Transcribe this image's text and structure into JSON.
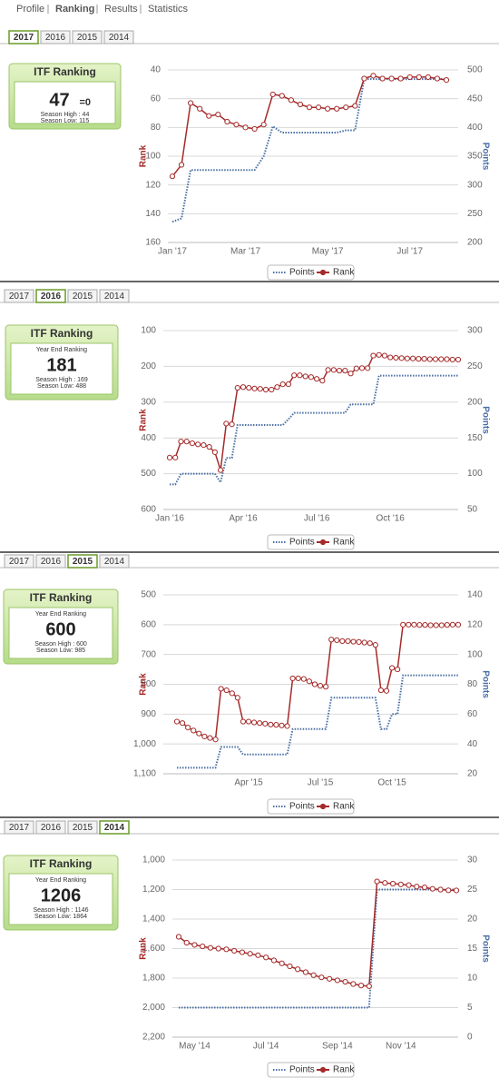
{
  "nav": {
    "items": [
      "Profile",
      "Ranking",
      "Results",
      "Statistics"
    ],
    "active": 1
  },
  "panels": [
    {
      "tabs": [
        "2017",
        "2016",
        "2015",
        "2014"
      ],
      "active_tab": 0,
      "card": {
        "title": "ITF Ranking",
        "rank": 47,
        "change": "=0",
        "high": "Season High : 44",
        "low": "Season Low: 115"
      }
    },
    {
      "tabs": [
        "2017",
        "2016",
        "2015",
        "2014"
      ],
      "active_tab": 1,
      "card": {
        "title": "ITF Ranking",
        "subtitle": "Year End Ranking",
        "rank": 181,
        "high": "Season High : 169",
        "low": "Season Low: 488"
      }
    },
    {
      "tabs": [
        "2017",
        "2016",
        "2015",
        "2014"
      ],
      "active_tab": 2,
      "card": {
        "title": "ITF Ranking",
        "subtitle": "Year End Ranking",
        "rank": 600,
        "high": "Season High : 600",
        "low": "Season Low: 985"
      }
    },
    {
      "tabs": [
        "2017",
        "2016",
        "2015",
        "2014"
      ],
      "active_tab": 3,
      "card": {
        "title": "ITF Ranking",
        "subtitle": "Year End Ranking",
        "rank": 1206,
        "high": "Season High : 1146",
        "low": "Season Low: 1864"
      }
    }
  ],
  "chart_data": [
    {
      "type": "line",
      "y_label": "Rank",
      "y2_label": "Points",
      "y_reversed": true,
      "grid": true,
      "categories": [
        "Jan '17",
        null,
        null,
        null,
        null,
        null,
        null,
        null,
        "Mar '17",
        null,
        null,
        null,
        null,
        null,
        null,
        null,
        null,
        "May '17",
        null,
        null,
        null,
        null,
        null,
        null,
        null,
        null,
        "Jul '17",
        null,
        null,
        null,
        null
      ],
      "ylim": [
        40,
        160
      ],
      "yticks": [
        40,
        60,
        80,
        100,
        120,
        140,
        160
      ],
      "y2lim": [
        200,
        500
      ],
      "y2ticks": [
        200,
        250,
        300,
        350,
        400,
        450,
        500
      ],
      "series": [
        {
          "name": "Points",
          "color": "#4a6fa5",
          "axis": "y2",
          "style": "dotted",
          "values": [
            236,
            242,
            326,
            326,
            326,
            326,
            326,
            326,
            326,
            326,
            350,
            402,
            391,
            391,
            391,
            391,
            391,
            391,
            391,
            395,
            395,
            484,
            484,
            484,
            484,
            484,
            484,
            484,
            484,
            484,
            484
          ]
        },
        {
          "name": "Rank",
          "color": "#a52a2a",
          "style": "marker",
          "values": [
            114,
            106,
            63,
            67,
            72,
            71,
            76,
            78,
            80,
            81,
            78,
            57,
            58,
            61,
            64,
            66,
            66,
            67,
            67,
            66,
            65,
            46,
            44,
            46,
            46,
            46,
            45,
            45,
            45,
            46,
            47
          ]
        }
      ]
    },
    {
      "type": "line",
      "y_label": "Rank",
      "y2_label": "Points",
      "y_reversed": true,
      "grid": true,
      "categories": [
        "Jan '16",
        null,
        null,
        null,
        null,
        null,
        null,
        null,
        null,
        null,
        null,
        null,
        null,
        "Apr '16",
        null,
        null,
        null,
        null,
        null,
        null,
        null,
        null,
        null,
        null,
        null,
        null,
        "Jul '16",
        null,
        null,
        null,
        null,
        null,
        null,
        null,
        null,
        null,
        null,
        null,
        null,
        "Oct '16",
        null,
        null,
        null,
        null,
        null,
        null,
        null,
        null,
        null,
        null,
        null,
        null
      ],
      "ylim": [
        100,
        600
      ],
      "yticks": [
        100,
        200,
        300,
        400,
        500,
        600
      ],
      "y2lim": [
        50,
        300
      ],
      "y2ticks": [
        50,
        100,
        150,
        200,
        250,
        300
      ],
      "series": [
        {
          "name": "Points",
          "color": "#4a6fa5",
          "axis": "y2",
          "style": "dotted",
          "values": [
            85,
            85,
            100,
            100,
            100,
            100,
            100,
            100,
            100,
            88,
            122,
            122,
            168,
            168,
            168,
            168,
            168,
            168,
            168,
            168,
            168,
            176,
            185,
            185,
            185,
            185,
            185,
            185,
            185,
            185,
            185,
            185,
            197,
            197,
            197,
            197,
            197,
            237,
            237,
            237,
            237,
            237,
            237,
            237,
            237,
            237,
            237,
            237,
            237,
            237,
            237,
            237
          ]
        },
        {
          "name": "Rank",
          "color": "#a52a2a",
          "style": "marker",
          "values": [
            455,
            455,
            410,
            410,
            415,
            418,
            420,
            425,
            440,
            490,
            360,
            362,
            260,
            258,
            260,
            262,
            263,
            265,
            265,
            258,
            250,
            250,
            225,
            225,
            228,
            230,
            235,
            240,
            210,
            210,
            212,
            212,
            220,
            206,
            205,
            205,
            170,
            168,
            170,
            175,
            176,
            177,
            178,
            178,
            179,
            179,
            180,
            180,
            180,
            180,
            181,
            181
          ]
        }
      ]
    },
    {
      "type": "line",
      "y_label": "Rank",
      "y2_label": "Points",
      "y_reversed": true,
      "grid": true,
      "categories": [
        null,
        null,
        null,
        null,
        null,
        null,
        null,
        null,
        null,
        null,
        null,
        null,
        null,
        "Apr '15",
        null,
        null,
        null,
        null,
        null,
        null,
        null,
        null,
        null,
        null,
        null,
        null,
        "Jul '15",
        null,
        null,
        null,
        null,
        null,
        null,
        null,
        null,
        null,
        null,
        null,
        null,
        "Oct '15",
        null,
        null,
        null,
        null,
        null,
        null,
        null,
        null,
        null,
        null,
        null,
        null
      ],
      "ylim": [
        500,
        1100
      ],
      "yticks": [
        500,
        600,
        700,
        800,
        900,
        {
          "value": 1000,
          "label": "1,000"
        },
        {
          "value": 1100,
          "label": "1,100"
        }
      ],
      "y2lim": [
        20,
        140
      ],
      "y2ticks": [
        20,
        40,
        60,
        80,
        100,
        120,
        140
      ],
      "series": [
        {
          "name": "Points",
          "color": "#4a6fa5",
          "axis": "y2",
          "style": "dotted",
          "values": [
            24,
            24,
            24,
            24,
            24,
            24,
            24,
            24,
            38,
            38,
            38,
            38,
            33,
            33,
            33,
            33,
            33,
            33,
            33,
            33,
            33,
            50,
            50,
            50,
            50,
            50,
            50,
            50,
            71,
            71,
            71,
            71,
            71,
            71,
            71,
            71,
            71,
            50,
            50,
            60,
            60,
            86,
            86,
            86,
            86,
            86,
            86,
            86,
            86,
            86,
            86,
            86
          ]
        },
        {
          "name": "Rank",
          "color": "#a52a2a",
          "style": "marker",
          "values": [
            925,
            930,
            945,
            955,
            965,
            975,
            980,
            985,
            815,
            820,
            830,
            845,
            925,
            925,
            928,
            930,
            932,
            935,
            936,
            938,
            940,
            780,
            780,
            782,
            790,
            800,
            805,
            808,
            650,
            652,
            655,
            655,
            657,
            658,
            660,
            662,
            668,
            820,
            822,
            745,
            750,
            600,
            600,
            600,
            601,
            601,
            602,
            602,
            602,
            601,
            600,
            600
          ]
        }
      ]
    },
    {
      "type": "line",
      "y_label": "Rank",
      "y2_label": "Points",
      "y_reversed": true,
      "grid": true,
      "categories": [
        null,
        null,
        "May '14",
        null,
        null,
        null,
        null,
        null,
        null,
        null,
        null,
        "Jul '14",
        null,
        null,
        null,
        null,
        null,
        null,
        null,
        null,
        "Sep '14",
        null,
        null,
        null,
        null,
        null,
        null,
        null,
        "Nov '14",
        null,
        null,
        null,
        null,
        null,
        null,
        null
      ],
      "ylim": [
        1000,
        2200
      ],
      "yticks": [
        {
          "value": 1000,
          "label": "1,000"
        },
        {
          "value": 1200,
          "label": "1,200"
        },
        {
          "value": 1400,
          "label": "1,400"
        },
        {
          "value": 1600,
          "label": "1,600"
        },
        {
          "value": 1800,
          "label": "1,800"
        },
        {
          "value": 2000,
          "label": "2,000"
        },
        {
          "value": 2200,
          "label": "2,200"
        }
      ],
      "y2lim": [
        0,
        30
      ],
      "y2ticks": [
        0,
        5,
        10,
        15,
        20,
        25,
        30
      ],
      "series": [
        {
          "name": "Points",
          "color": "#4a6fa5",
          "axis": "y2",
          "style": "dotted",
          "values": [
            5,
            5,
            5,
            5,
            5,
            5,
            5,
            5,
            5,
            5,
            5,
            5,
            5,
            5,
            5,
            5,
            5,
            5,
            5,
            5,
            5,
            5,
            5,
            5,
            5,
            25,
            25,
            25,
            25,
            25,
            25,
            25,
            25,
            25,
            25,
            25
          ]
        },
        {
          "name": "Rank",
          "color": "#a52a2a",
          "style": "marker",
          "values": [
            1520,
            1560,
            1575,
            1585,
            1595,
            1600,
            1605,
            1615,
            1625,
            1635,
            1645,
            1660,
            1680,
            1700,
            1720,
            1740,
            1760,
            1780,
            1795,
            1805,
            1815,
            1825,
            1840,
            1850,
            1855,
            1145,
            1155,
            1160,
            1165,
            1170,
            1180,
            1185,
            1195,
            1200,
            1205,
            1206
          ]
        }
      ]
    }
  ]
}
